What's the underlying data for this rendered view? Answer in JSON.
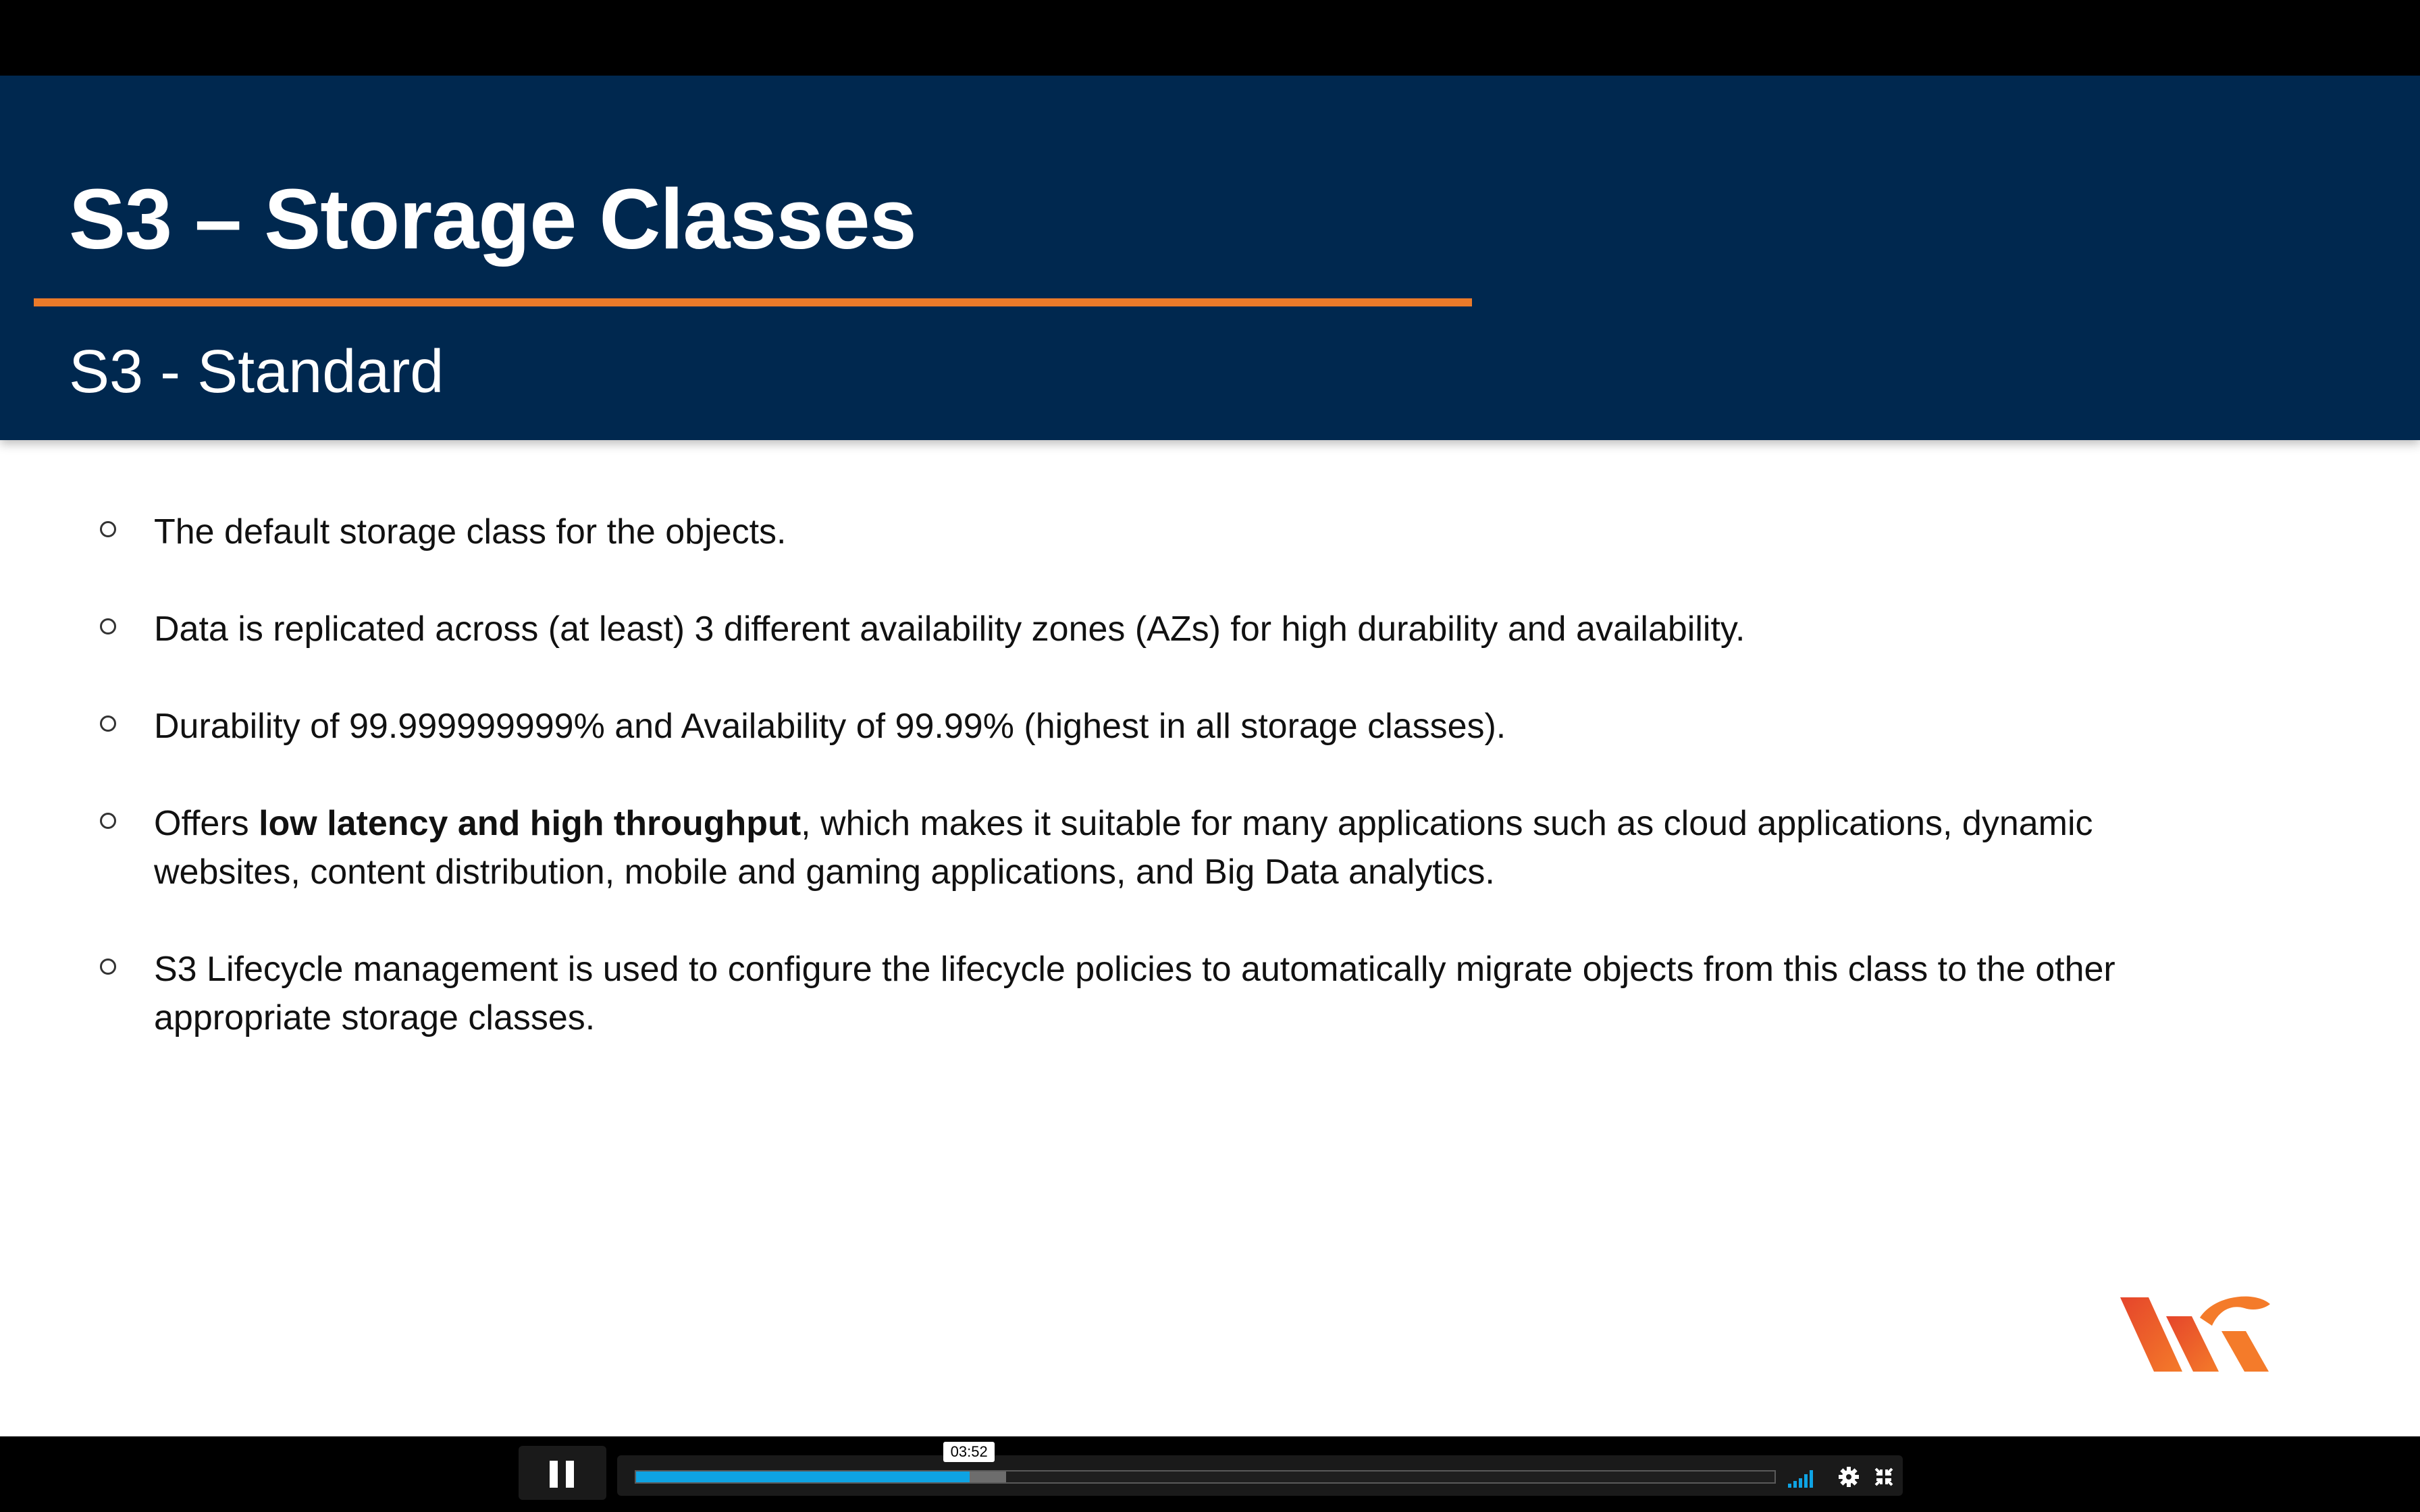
{
  "slide": {
    "title": "S3 – Storage Classes",
    "subtitle": "S3 - Standard",
    "bullets": [
      {
        "before": "The default storage class for the objects.",
        "bold": "",
        "after": ""
      },
      {
        "before": "Data is replicated across (at least) 3 different availability zones (AZs) for high durability and availability.",
        "bold": "",
        "after": ""
      },
      {
        "before": "Durability of 99.999999999% and Availability of 99.99% (highest in all storage classes).",
        "bold": "",
        "after": ""
      },
      {
        "before": "Offers ",
        "bold": "low latency and high throughput",
        "after": ", which makes it suitable for many applications such as cloud applications, dynamic websites, content distribution, mobile and gaming applications, and Big Data analytics."
      },
      {
        "before": "S3 Lifecycle management is used to configure the lifecycle policies to automatically migrate objects from this class to the other appropriate storage classes.",
        "bold": "",
        "after": ""
      }
    ],
    "colors": {
      "header_bg": "#00284f",
      "accent_rule": "#ea7a2a",
      "logo_orange": "#f47b2a",
      "logo_red": "#e5452b"
    }
  },
  "player": {
    "current_time": "03:52",
    "played_fraction": 0.293,
    "buffered_fraction": 0.325,
    "icons": [
      "pause-icon",
      "volume-bars-icon",
      "gear-icon",
      "exit-fullscreen-icon"
    ],
    "accent_color": "#0ea3e3"
  }
}
